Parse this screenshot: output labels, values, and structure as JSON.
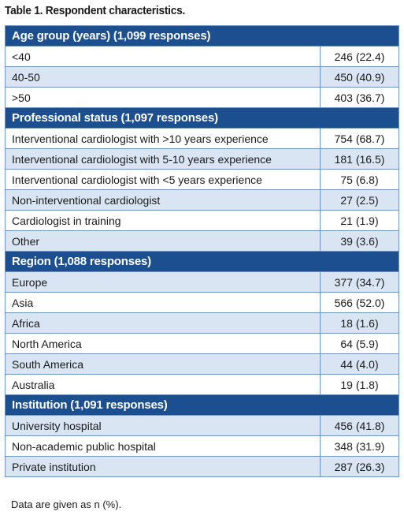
{
  "title": "Table 1. Respondent characteristics.",
  "table": {
    "sections": [
      {
        "header": "Age group (years) (1,099 responses)",
        "rows": [
          [
            "<40",
            "246 (22.4)"
          ],
          [
            "40-50",
            "450 (40.9)"
          ],
          [
            ">50",
            "403 (36.7)"
          ]
        ]
      },
      {
        "header": "Professional status (1,097 responses)",
        "rows": [
          [
            "Interventional cardiologist with >10 years experience",
            "754 (68.7)"
          ],
          [
            "Interventional cardiologist with 5-10 years experience",
            "181 (16.5)"
          ],
          [
            "Interventional cardiologist with <5 years experience",
            "75 (6.8)"
          ],
          [
            "Non-interventional cardiologist",
            "27 (2.5)"
          ],
          [
            "Cardiologist in training",
            "21 (1.9)"
          ],
          [
            "Other",
            "39 (3.6)"
          ]
        ]
      },
      {
        "header": "Region (1,088 responses)",
        "rows": [
          [
            "Europe",
            "377 (34.7)"
          ],
          [
            "Asia",
            "566 (52.0)"
          ],
          [
            "Africa",
            "18 (1.6)"
          ],
          [
            "North America",
            "64 (5.9)"
          ],
          [
            "South America",
            "44 (4.0)"
          ],
          [
            "Australia",
            "19 (1.8)"
          ]
        ]
      },
      {
        "header": "Institution (1,091 responses)",
        "rows": [
          [
            "University hospital",
            "456 (41.8)"
          ],
          [
            "Non-academic public hospital",
            "348 (31.9)"
          ],
          [
            "Private institution",
            "287 (26.3)"
          ]
        ]
      }
    ]
  },
  "footnote": "Data are given as n (%)."
}
